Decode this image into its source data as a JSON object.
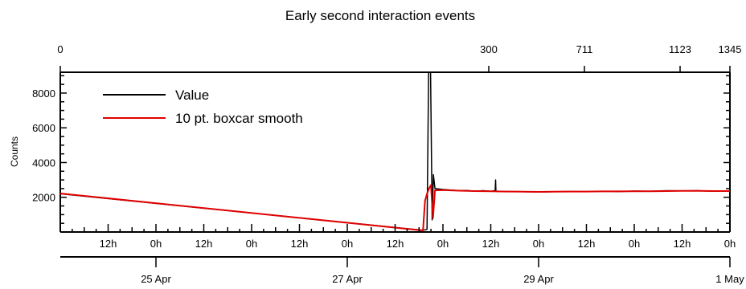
{
  "chart_data": {
    "type": "line",
    "title": "Early second interaction events",
    "ylabel": "Counts",
    "xlabel": "",
    "ylim": [
      0,
      9200
    ],
    "y_ticks": [
      2000,
      4000,
      6000,
      8000
    ],
    "x_range_hours": [
      0,
      168
    ],
    "top_axis": {
      "ticks": [
        {
          "label": "0",
          "hour": 0
        },
        {
          "label": "300",
          "hour": 107.5
        },
        {
          "label": "711",
          "hour": 131.5
        },
        {
          "label": "1123",
          "hour": 155.5
        },
        {
          "label": "1345",
          "hour": 168
        }
      ]
    },
    "bottom_axis_hours": {
      "ticks": [
        {
          "label": "12h",
          "hour": 12
        },
        {
          "label": "0h",
          "hour": 24
        },
        {
          "label": "12h",
          "hour": 36
        },
        {
          "label": "0h",
          "hour": 48
        },
        {
          "label": "12h",
          "hour": 60
        },
        {
          "label": "0h",
          "hour": 72
        },
        {
          "label": "12h",
          "hour": 84
        },
        {
          "label": "0h",
          "hour": 96
        },
        {
          "label": "12h",
          "hour": 108
        },
        {
          "label": "0h",
          "hour": 120
        },
        {
          "label": "12h",
          "hour": 132
        },
        {
          "label": "0h",
          "hour": 144
        },
        {
          "label": "12h",
          "hour": 156
        },
        {
          "label": "0h",
          "hour": 168
        }
      ]
    },
    "bottom_axis_dates": {
      "ticks": [
        {
          "label": "25 Apr",
          "hour": 24
        },
        {
          "label": "27 Apr",
          "hour": 72
        },
        {
          "label": "29 Apr",
          "hour": 120
        },
        {
          "label": "1 May",
          "hour": 168
        }
      ]
    },
    "legend": {
      "placement": "top-left"
    },
    "series": [
      {
        "name": "Value",
        "color": "#000000",
        "points": [
          [
            0,
            2200
          ],
          [
            91,
            100
          ],
          [
            92,
            150
          ],
          [
            92.4,
            9200
          ],
          [
            92.9,
            9200
          ],
          [
            93.3,
            700
          ],
          [
            93.6,
            3300
          ],
          [
            94,
            2500
          ],
          [
            96,
            2450
          ],
          [
            98,
            2420
          ],
          [
            100,
            2380
          ],
          [
            102,
            2390
          ],
          [
            104,
            2350
          ],
          [
            106,
            2380
          ],
          [
            108,
            2350
          ],
          [
            109.1,
            2380
          ],
          [
            109.2,
            3000
          ],
          [
            109.3,
            2350
          ],
          [
            112,
            2330
          ],
          [
            116,
            2320
          ],
          [
            120,
            2300
          ],
          [
            124,
            2320
          ],
          [
            128,
            2330
          ],
          [
            132,
            2320
          ],
          [
            136,
            2350
          ],
          [
            140,
            2330
          ],
          [
            144,
            2360
          ],
          [
            148,
            2350
          ],
          [
            152,
            2380
          ],
          [
            156,
            2370
          ],
          [
            160,
            2380
          ],
          [
            164,
            2350
          ],
          [
            168,
            2350
          ]
        ]
      },
      {
        "name": "10 pt. boxcar smooth",
        "color": "#e00000",
        "points": [
          [
            0,
            2220
          ],
          [
            91,
            90
          ],
          [
            91.5,
            1800
          ],
          [
            92,
            2200
          ],
          [
            92.5,
            2500
          ],
          [
            93,
            2700
          ],
          [
            93.5,
            800
          ],
          [
            94,
            2400
          ],
          [
            96,
            2420
          ],
          [
            100,
            2380
          ],
          [
            104,
            2360
          ],
          [
            108,
            2350
          ],
          [
            112,
            2330
          ],
          [
            116,
            2320
          ],
          [
            120,
            2310
          ],
          [
            124,
            2320
          ],
          [
            128,
            2330
          ],
          [
            132,
            2330
          ],
          [
            136,
            2340
          ],
          [
            140,
            2340
          ],
          [
            144,
            2350
          ],
          [
            148,
            2350
          ],
          [
            152,
            2360
          ],
          [
            156,
            2370
          ],
          [
            160,
            2370
          ],
          [
            164,
            2360
          ],
          [
            168,
            2360
          ]
        ]
      }
    ]
  }
}
